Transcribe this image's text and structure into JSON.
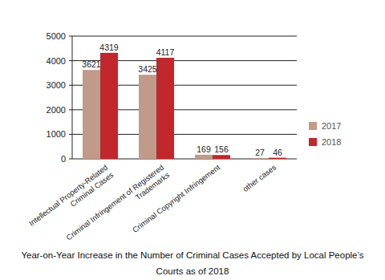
{
  "chart_data": {
    "type": "bar",
    "title": "Year-on-Year Increase in the Number of Criminal Cases Accepted by Local People’s Courts as of 2018",
    "categories": [
      "Intellectual Property-Related Criminal Cases",
      "Criminal Infringement of Registered Trademarks",
      "Criminal Copyright Infringement",
      "other cases"
    ],
    "series": [
      {
        "name": "2017",
        "color": "#c19a89",
        "values": [
          3621,
          3425,
          169,
          27
        ]
      },
      {
        "name": "2018",
        "color": "#c1272d",
        "values": [
          4319,
          4117,
          156,
          46
        ]
      }
    ],
    "ylim": [
      0,
      5000
    ],
    "yticks": [
      0,
      1000,
      2000,
      3000,
      4000,
      5000
    ],
    "grid": true,
    "legend": "right",
    "data_labels": true
  }
}
